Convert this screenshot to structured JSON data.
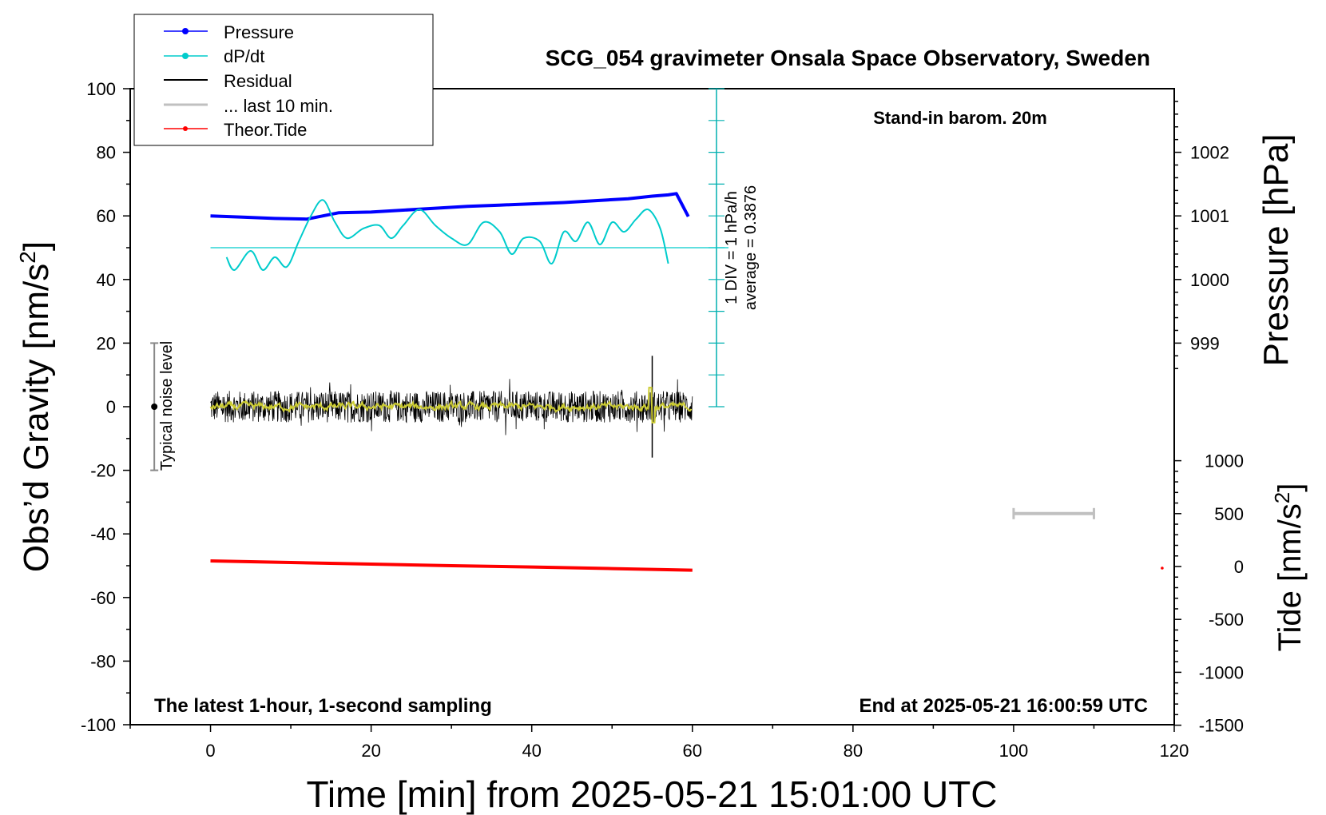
{
  "chart_data": {
    "type": "line",
    "title": "SCG_054 gravimeter Onsala Space Observatory, Sweden",
    "xlabel": "Time [min] from 2025-05-21 15:01:00 UTC",
    "ylabel": "Obs’d Gravity [nm/s",
    "ylabel_sup": "2",
    "ylabel_close": "]",
    "y2label": "Pressure [hPa]",
    "y3label": "Tide [nm/s",
    "y3label_sup": "2",
    "y3label_close": "]",
    "xlim": [
      -10,
      120
    ],
    "ylim": [
      -100,
      100
    ],
    "pressure_axis_range": [
      998,
      1003
    ],
    "tide_axis_range": [
      -1500,
      1500
    ],
    "x_ticks": [
      0,
      20,
      40,
      60,
      80,
      100,
      120
    ],
    "y_ticks": [
      100,
      80,
      60,
      40,
      20,
      0,
      -20,
      -40,
      -60,
      -80,
      -100
    ],
    "pressure_ticks": [
      1002,
      1001,
      1000,
      999
    ],
    "tide_ticks": [
      1000,
      500,
      0,
      -500,
      -1000,
      -1500
    ],
    "legend": {
      "placement": "top-left",
      "entries": [
        {
          "label": "Pressure",
          "color": "#0000ff",
          "marker": true
        },
        {
          "label": "dP/dt",
          "color": "#00cccc",
          "marker": true
        },
        {
          "label": "Residual",
          "color": "#000000",
          "marker": false
        },
        {
          "label": "... last 10 min.",
          "color": "#c0c0c0",
          "marker": false
        },
        {
          "label": "Theor.Tide",
          "color": "#ff0000",
          "marker": true
        }
      ]
    },
    "annotations": {
      "station_note": "Stand-in barom. 20m",
      "bottom_left": "The latest 1-hour, 1-second sampling",
      "bottom_right": "End at 2025-05-21 16:00:59 UTC",
      "div_label": "1 DIV = 1 hPa/h",
      "average_label": "average = 0.3876",
      "noise_label": "Typical noise level"
    },
    "series": [
      {
        "name": "Pressure",
        "color": "#0000ff",
        "units": "hPa",
        "x": [
          0,
          4,
          8,
          12,
          16,
          20,
          24,
          28,
          32,
          36,
          40,
          44,
          48,
          52,
          55,
          57,
          58,
          59.5
        ],
        "values": [
          1001.0,
          1000.98,
          1000.96,
          1000.95,
          1001.05,
          1001.06,
          1001.09,
          1001.12,
          1001.15,
          1001.17,
          1001.19,
          1001.21,
          1001.24,
          1001.27,
          1001.31,
          1001.33,
          1001.35,
          1000.99
        ]
      },
      {
        "name": "dP/dt",
        "color": "#00cccc",
        "units": "nm/s2 (plot scale)",
        "x": [
          2,
          3,
          5,
          6.5,
          8,
          9.5,
          11,
          12.5,
          14,
          15.5,
          17,
          19,
          21,
          22.5,
          24,
          26,
          28,
          30,
          32,
          34,
          36,
          37.5,
          39,
          41,
          42.5,
          44,
          45.5,
          47,
          48.5,
          50,
          51.5,
          53,
          54.5,
          56,
          57
        ],
        "values": [
          47,
          43,
          49,
          43,
          47,
          44,
          52,
          60,
          65,
          58,
          53,
          56,
          57,
          53,
          57,
          62,
          57,
          53,
          51,
          58,
          55,
          48,
          53,
          52,
          45,
          55,
          52,
          58,
          51,
          58,
          55,
          59,
          62,
          56,
          45
        ]
      },
      {
        "name": "Residual",
        "color": "#000000",
        "units": "nm/s2",
        "x_range": [
          0,
          60
        ],
        "typical_amplitude": 5,
        "spike_x": 55,
        "spike_values": [
          16,
          -16
        ]
      },
      {
        "name": "Residual (smoothed)",
        "color": "#cccc33",
        "units": "nm/s2",
        "x_range": [
          0,
          60
        ],
        "mean_value": 0
      },
      {
        "name": "Theor.Tide",
        "color": "#ff0000",
        "units": "nm/s2 (plot scale)",
        "x": [
          0,
          10,
          20,
          30,
          40,
          50,
          60
        ],
        "values": [
          -48.5,
          -49.0,
          -49.5,
          -50.0,
          -50.4,
          -50.9,
          -51.4
        ]
      }
    ],
    "reference_lines": [
      {
        "name": "dP/dt average",
        "value": 50,
        "color": "#00cccc"
      }
    ],
    "noise_bar": {
      "center": 0,
      "half_range": 20
    },
    "last10_bar": {
      "x_start": 100,
      "x_end": 110,
      "tide_value": 500
    },
    "last_tide_marker": {
      "x": 118.5,
      "tide_value": 0
    }
  }
}
